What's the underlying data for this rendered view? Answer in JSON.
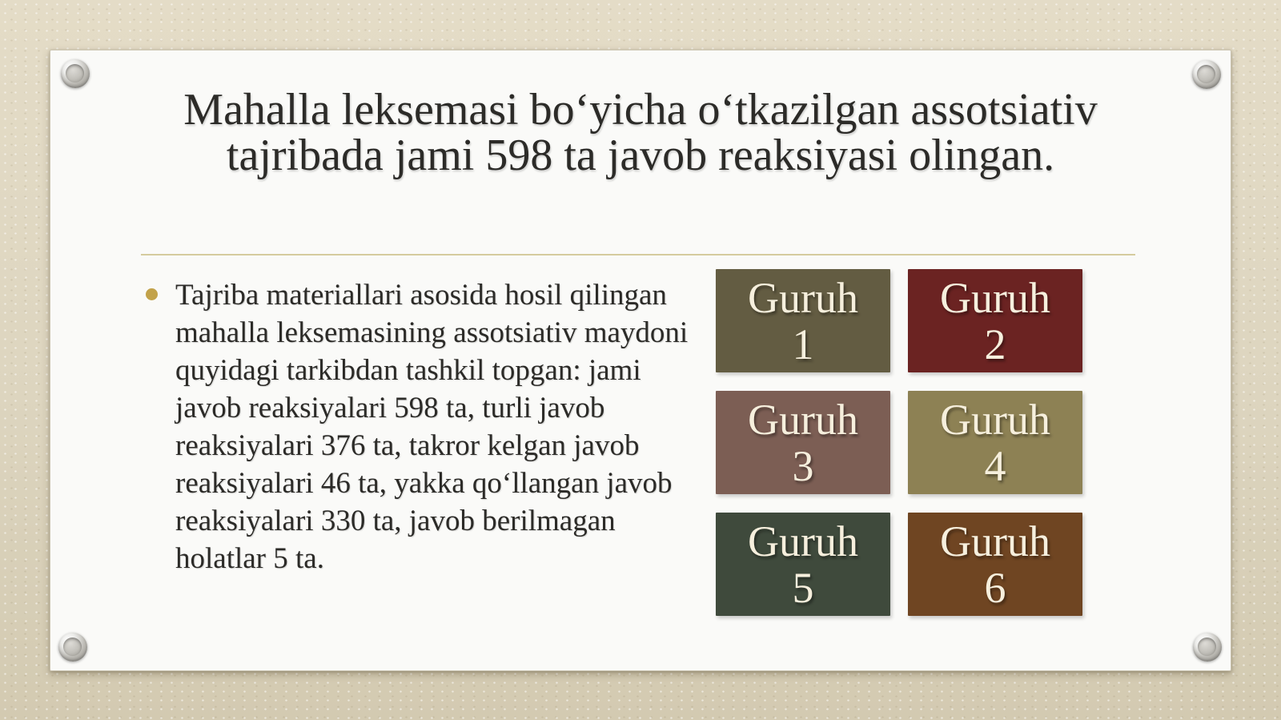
{
  "slide": {
    "title_lines": [
      "Mahalla leksemasi boʻyicha oʻtkazilgan assotsiativ",
      "tajribada jami 598 ta javob reaksiyasi olingan."
    ],
    "bullet_text": "Tajriba materiallari asosida hosil qilingan mahalla leksemasining assotsiativ maydoni quyidagi tarkibdan tashkil topgan: jami javob reaksiyalari 598 ta, turli javob reaksiyalari 376 ta, takror kelgan javob reaksiyalari 46 ta, yakka qoʻllangan javob reaksiyalari 330 ta, javob berilmagan holatlar 5 ta.",
    "groups": [
      {
        "label": "Guruh",
        "number": "1",
        "color": "#635c42"
      },
      {
        "label": "Guruh",
        "number": "2",
        "color": "#6b2322"
      },
      {
        "label": "Guruh",
        "number": "3",
        "color": "#7c5e54"
      },
      {
        "label": "Guruh",
        "number": "4",
        "color": "#8d8154"
      },
      {
        "label": "Guruh",
        "number": "5",
        "color": "#3f4a3c"
      },
      {
        "label": "Guruh",
        "number": "6",
        "color": "#6f4522"
      }
    ]
  },
  "colors": {
    "background": "#e0d8c2",
    "card": "#fafaf8",
    "text": "#2c2b28",
    "bullet_marker": "#c2a24a",
    "divider": "#d5cb9e",
    "group_text": "#f6efdd"
  }
}
